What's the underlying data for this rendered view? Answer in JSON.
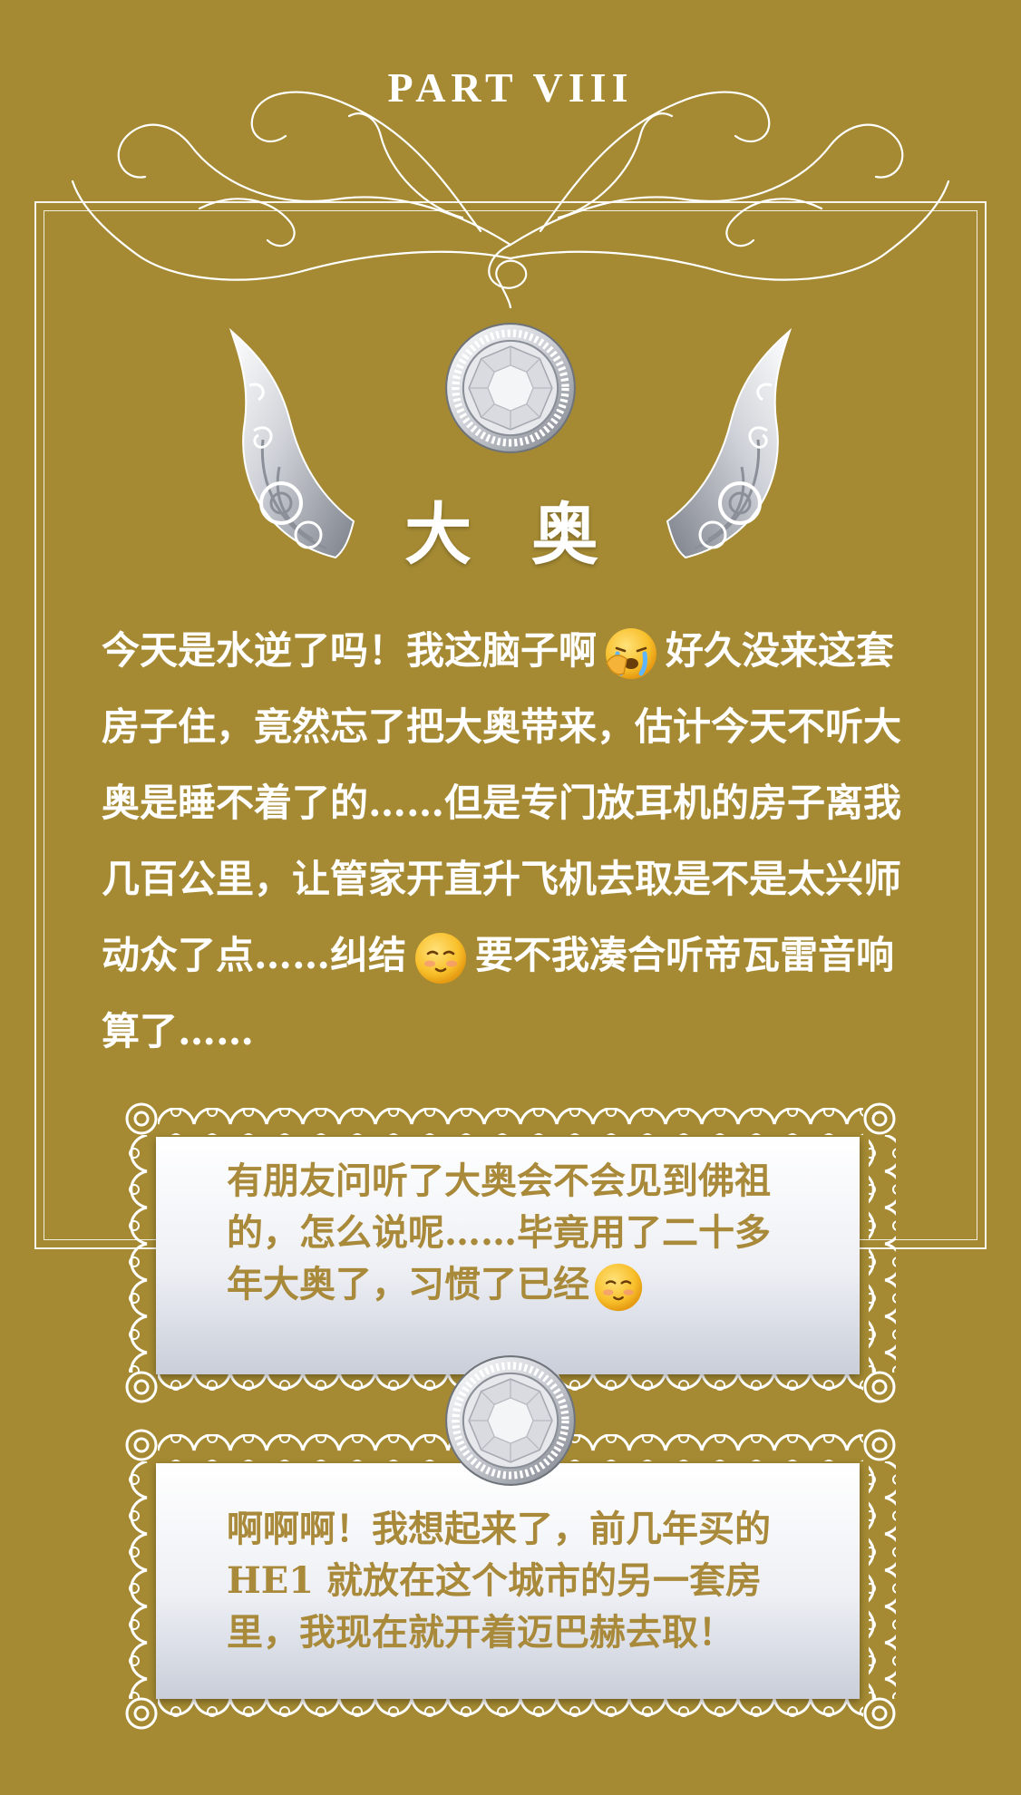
{
  "header": {
    "part_label": "PART VIII"
  },
  "section": {
    "title": "大 奥"
  },
  "body": {
    "segments": [
      "今天是水逆了吗！我这脑子啊",
      "好久没来这套房子住，竟然忘了把大奥带来，估计今天不听大奥是睡不着了的……但是专门放耳机的房子离我几百公里，让管家开直升飞机去取是不是太兴师动众了点……纠结",
      "要不我凑合听帝瓦雷音响算了……"
    ],
    "emojis": [
      "crying-face-icon",
      "pleading-face-icon"
    ]
  },
  "cards": [
    {
      "text": "有朋友问听了大奥会不会见到佛祖的，怎么说呢……毕竟用了二十多年大奥了，习惯了已经",
      "emoji": "pleading-face-icon"
    },
    {
      "text": "啊啊啊！我想起来了，前几年买的HE1 就放在这个城市的另一套房里，我现在就开着迈巴赫去取！"
    }
  ],
  "colors": {
    "background": "#a58a33",
    "card_text": "#a9893a",
    "text": "#ffffff"
  }
}
